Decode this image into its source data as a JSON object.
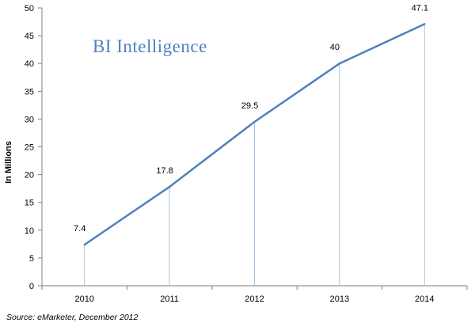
{
  "brand_text": "BI Intelligence",
  "source_text": "Source: eMarketer, December 2012",
  "colors": {
    "line": "#4f81bd",
    "droplines": "#a8c4e0",
    "axis": "#808080",
    "brand": "#4f81bd"
  },
  "chart_data": {
    "type": "line",
    "categories": [
      "2010",
      "2011",
      "2012",
      "2013",
      "2014"
    ],
    "series": [
      {
        "values": [
          7.4,
          17.8,
          29.5,
          40,
          47.1
        ]
      }
    ],
    "data_labels": [
      "7.4",
      "17.8",
      "29.5",
      "40",
      "47.1"
    ],
    "ylabel": "In Millions",
    "xlabel": "",
    "ylim": [
      0,
      50
    ],
    "yticks": [
      0,
      5,
      10,
      15,
      20,
      25,
      30,
      35,
      40,
      45,
      50
    ],
    "grid": false,
    "legend": "none"
  }
}
